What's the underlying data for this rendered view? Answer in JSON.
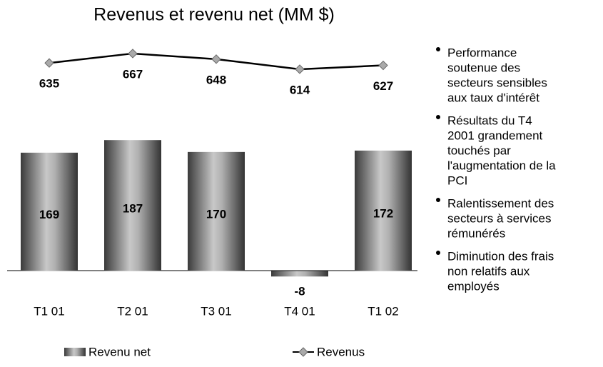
{
  "chart_data": {
    "type": "bar_line",
    "title": "Revenus et revenu net (MM $)",
    "categories": [
      "T1 01",
      "T2 01",
      "T3 01",
      "T4 01",
      "T1 02"
    ],
    "series": [
      {
        "name": "Revenu net",
        "type": "bar",
        "color": "#888888",
        "values": [
          169,
          187,
          170,
          -8,
          172
        ]
      },
      {
        "name": "Revenus",
        "type": "line",
        "axis": "y2",
        "color": "#000000",
        "marker_color": "#aaaaaa",
        "values": [
          635,
          667,
          648,
          614,
          627
        ]
      }
    ],
    "ylim": [
      -21,
      326
    ],
    "y2lim": [
      -116,
      703
    ],
    "bullets": [
      [
        "Performance",
        "soutenue des",
        "secteurs sensibles",
        "aux taux d'intérêt"
      ],
      [
        "Résultats du T4",
        "2001 grandement",
        "touchés par",
        "l'augmentation de la",
        "PCI"
      ],
      [
        "Ralentissement des",
        "secteurs à services",
        "rémunérés"
      ],
      [
        "Diminution des frais",
        "non relatifs aux",
        "employés"
      ]
    ]
  }
}
